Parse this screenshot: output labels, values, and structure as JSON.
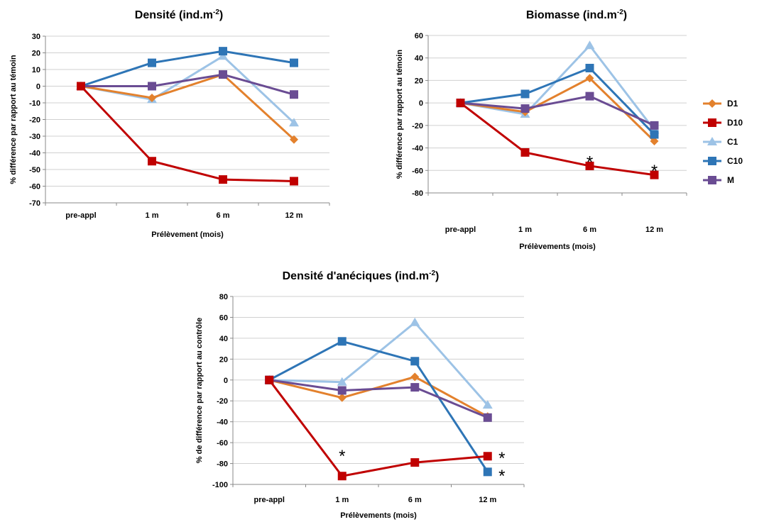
{
  "legend": [
    {
      "name": "D1",
      "color": "#E3812D",
      "marker": "diamond"
    },
    {
      "name": "D10",
      "color": "#C00000",
      "marker": "square"
    },
    {
      "name": "C1",
      "color": "#9DC3E6",
      "marker": "triangle"
    },
    {
      "name": "C10",
      "color": "#2E75B6",
      "marker": "square"
    },
    {
      "name": "M",
      "color": "#6A4C93",
      "marker": "square"
    }
  ],
  "chart_data": [
    {
      "type": "line",
      "title": "Densité (ind.m",
      "title_sup": "-2",
      "title_end": ")",
      "xlabel": "Prélèvement (mois)",
      "ylabel": "% différence par rapport au témoin",
      "categories": [
        "pre-appl",
        "1 m",
        "6 m",
        "12 m"
      ],
      "ylim": [
        -70,
        30
      ],
      "yticks": [
        30,
        20,
        10,
        0,
        -10,
        -20,
        -30,
        -40,
        -50,
        -60,
        -70
      ],
      "grid": true,
      "series": [
        {
          "name": "D1",
          "values": [
            0,
            -7,
            7,
            -32
          ]
        },
        {
          "name": "D10",
          "values": [
            0,
            -45,
            -56,
            -57
          ]
        },
        {
          "name": "C1",
          "values": [
            0,
            -8,
            18,
            -22
          ]
        },
        {
          "name": "C10",
          "values": [
            0,
            14,
            21,
            14
          ]
        },
        {
          "name": "M",
          "values": [
            0,
            0,
            7,
            -5
          ]
        }
      ],
      "annotations": []
    },
    {
      "type": "line",
      "title": "Biomasse (ind.m",
      "title_sup": "-2",
      "title_end": ")",
      "xlabel": "Prélèvements (mois)",
      "ylabel": "% différence par rapport au témoin",
      "categories": [
        "pre-appl",
        "1 m",
        "6 m",
        "12 m"
      ],
      "ylim": [
        -80,
        60
      ],
      "yticks": [
        60,
        40,
        20,
        0,
        -20,
        -40,
        -60,
        -80
      ],
      "grid": true,
      "legend_position": "right",
      "series": [
        {
          "name": "D1",
          "values": [
            0,
            -8,
            22,
            -34
          ]
        },
        {
          "name": "D10",
          "values": [
            0,
            -44,
            -56,
            -64
          ]
        },
        {
          "name": "C1",
          "values": [
            0,
            -10,
            51,
            -24
          ]
        },
        {
          "name": "C10",
          "values": [
            0,
            8,
            31,
            -28
          ]
        },
        {
          "name": "M",
          "values": [
            0,
            -5,
            6,
            -20
          ]
        }
      ],
      "annotations": [
        {
          "text": "*",
          "category": "6 m",
          "value": -50
        },
        {
          "text": "*",
          "category": "12 m",
          "value": -58
        }
      ]
    },
    {
      "type": "line",
      "title": "Densité d'anéciques (ind.m",
      "title_sup": "-2",
      "title_end": ")",
      "xlabel": "Prélèvements (mois)",
      "ylabel": "% de différence par rapport au contrôle",
      "categories": [
        "pre-appl",
        "1 m",
        "6 m",
        "12 m"
      ],
      "ylim": [
        -100,
        80
      ],
      "yticks": [
        80,
        60,
        40,
        20,
        0,
        -20,
        -40,
        -60,
        -80,
        -100
      ],
      "grid": true,
      "series": [
        {
          "name": "D1",
          "values": [
            0,
            -17,
            3,
            -35
          ]
        },
        {
          "name": "D10",
          "values": [
            0,
            -92,
            -79,
            -73
          ]
        },
        {
          "name": "C1",
          "values": [
            0,
            -2,
            55,
            -24
          ]
        },
        {
          "name": "C10",
          "values": [
            0,
            37,
            18,
            -88
          ]
        },
        {
          "name": "M",
          "values": [
            0,
            -10,
            -7,
            -36
          ]
        }
      ],
      "annotations": [
        {
          "text": "*",
          "category": "1 m",
          "value": -70
        },
        {
          "text": "*",
          "category": "12 m",
          "value": -72,
          "side": "right"
        },
        {
          "text": "*",
          "category": "12 m",
          "value": -89,
          "side": "right"
        }
      ]
    }
  ]
}
